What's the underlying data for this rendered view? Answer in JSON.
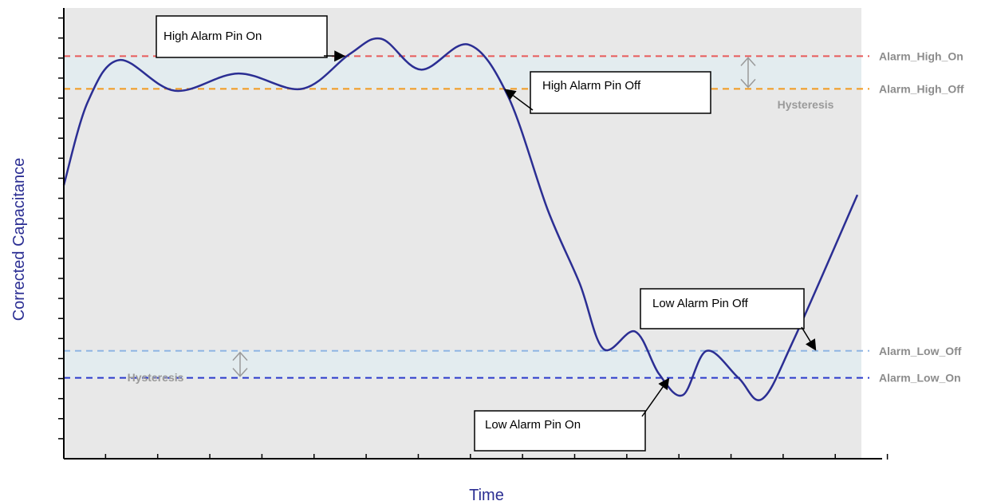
{
  "chart_data": {
    "type": "line",
    "xlabel": "Time",
    "ylabel": "Corrected Capacitance",
    "x_ticks": 16,
    "y_ticks": 22,
    "grid": false,
    "series": [
      {
        "color": "#2b2e93",
        "points": [
          [
            0.0,
            14.2
          ],
          [
            0.03,
            18.5
          ],
          [
            0.07,
            20.7
          ],
          [
            0.14,
            19.1
          ],
          [
            0.22,
            20.0
          ],
          [
            0.3,
            19.2
          ],
          [
            0.36,
            21.0
          ],
          [
            0.4,
            21.8
          ],
          [
            0.45,
            20.2
          ],
          [
            0.51,
            21.5
          ],
          [
            0.56,
            18.8
          ],
          [
            0.61,
            12.9
          ],
          [
            0.65,
            9.1
          ],
          [
            0.68,
            5.7
          ],
          [
            0.72,
            6.6
          ],
          [
            0.75,
            4.4
          ],
          [
            0.78,
            3.3
          ],
          [
            0.81,
            5.6
          ],
          [
            0.85,
            4.2
          ],
          [
            0.88,
            3.1
          ],
          [
            0.92,
            6.2
          ],
          [
            1.0,
            13.7
          ]
        ]
      }
    ],
    "thresholds": [
      {
        "name": "Alarm_High_On",
        "value": 20.9,
        "color": "#e85a5a"
      },
      {
        "name": "Alarm_High_Off",
        "value": 19.2,
        "color": "#f29a1f"
      },
      {
        "name": "Alarm_Low_Off",
        "value": 5.6,
        "color": "#8fb5e3"
      },
      {
        "name": "Alarm_Low_On",
        "value": 4.2,
        "color": "#2a3acc"
      }
    ],
    "hysteresis_label": "Hysteresis",
    "annotations": [
      {
        "text": "High Alarm Pin On",
        "target": [
          0.355,
          20.9
        ]
      },
      {
        "text": "High Alarm Pin Off",
        "target": [
          0.555,
          19.2
        ]
      },
      {
        "text": "Low Alarm Pin On",
        "target": [
          0.763,
          4.2
        ]
      },
      {
        "text": "Low Alarm Pin Off",
        "target": [
          0.948,
          5.6
        ]
      }
    ],
    "ylim": [
      0,
      23.4
    ],
    "xlim": [
      0,
      1
    ],
    "colors": {
      "plot_background": "#e8e8e8",
      "hysteresis_band": "#e3ecef",
      "series_line": "#2b2e93",
      "axis": "#000000"
    }
  }
}
